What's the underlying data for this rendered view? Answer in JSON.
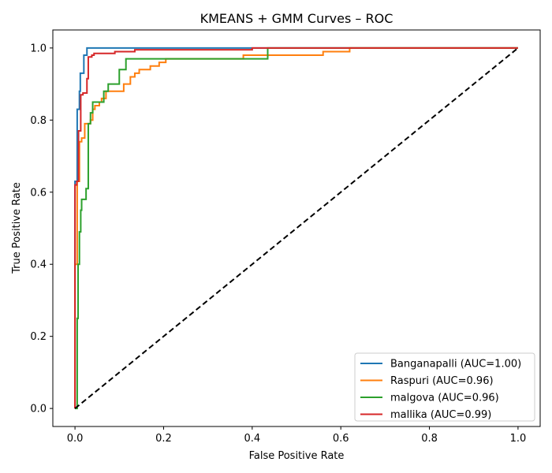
{
  "chart_data": {
    "type": "line",
    "title": "KMEANS + GMM Curves – ROC",
    "xlabel": "False Positive Rate",
    "ylabel": "True Positive Rate",
    "xlim": [
      -0.05,
      1.05
    ],
    "ylim": [
      -0.05,
      1.05
    ],
    "xticks": [
      "0.0",
      "0.2",
      "0.4",
      "0.6",
      "0.8",
      "1.0"
    ],
    "yticks": [
      "0.0",
      "0.2",
      "0.4",
      "0.6",
      "0.8",
      "1.0"
    ],
    "grid": false,
    "legend_position": "lower-right",
    "series": [
      {
        "name": "Banganapalli (AUC=1.00)",
        "color": "#1f77b4",
        "points": [
          [
            0,
            0
          ],
          [
            0,
            0.63
          ],
          [
            0.005,
            0.63
          ],
          [
            0.005,
            0.83
          ],
          [
            0.01,
            0.83
          ],
          [
            0.01,
            0.88
          ],
          [
            0.012,
            0.88
          ],
          [
            0.012,
            0.93
          ],
          [
            0.02,
            0.93
          ],
          [
            0.02,
            0.98
          ],
          [
            0.027,
            0.98
          ],
          [
            0.027,
            1.0
          ],
          [
            1.0,
            1.0
          ]
        ]
      },
      {
        "name": "Raspuri (AUC=0.96)",
        "color": "#ff7f0e",
        "points": [
          [
            0,
            0
          ],
          [
            0,
            0.4
          ],
          [
            0.005,
            0.4
          ],
          [
            0.005,
            0.63
          ],
          [
            0.01,
            0.63
          ],
          [
            0.01,
            0.74
          ],
          [
            0.015,
            0.74
          ],
          [
            0.015,
            0.75
          ],
          [
            0.022,
            0.75
          ],
          [
            0.022,
            0.79
          ],
          [
            0.035,
            0.79
          ],
          [
            0.035,
            0.8
          ],
          [
            0.04,
            0.8
          ],
          [
            0.04,
            0.83
          ],
          [
            0.045,
            0.83
          ],
          [
            0.045,
            0.84
          ],
          [
            0.055,
            0.84
          ],
          [
            0.055,
            0.85
          ],
          [
            0.06,
            0.85
          ],
          [
            0.06,
            0.86
          ],
          [
            0.07,
            0.86
          ],
          [
            0.07,
            0.88
          ],
          [
            0.11,
            0.88
          ],
          [
            0.11,
            0.9
          ],
          [
            0.125,
            0.9
          ],
          [
            0.125,
            0.92
          ],
          [
            0.135,
            0.92
          ],
          [
            0.135,
            0.93
          ],
          [
            0.145,
            0.93
          ],
          [
            0.145,
            0.94
          ],
          [
            0.17,
            0.94
          ],
          [
            0.17,
            0.95
          ],
          [
            0.19,
            0.95
          ],
          [
            0.19,
            0.96
          ],
          [
            0.205,
            0.96
          ],
          [
            0.205,
            0.97
          ],
          [
            0.38,
            0.97
          ],
          [
            0.38,
            0.98
          ],
          [
            0.56,
            0.98
          ],
          [
            0.56,
            0.99
          ],
          [
            0.62,
            0.99
          ],
          [
            0.62,
            1.0
          ],
          [
            1.0,
            1.0
          ]
        ]
      },
      {
        "name": "malgova (AUC=0.96)",
        "color": "#2ca02c",
        "points": [
          [
            0,
            0
          ],
          [
            0.005,
            0
          ],
          [
            0.005,
            0.25
          ],
          [
            0.007,
            0.25
          ],
          [
            0.007,
            0.4
          ],
          [
            0.01,
            0.4
          ],
          [
            0.01,
            0.49
          ],
          [
            0.013,
            0.49
          ],
          [
            0.013,
            0.55
          ],
          [
            0.015,
            0.55
          ],
          [
            0.015,
            0.58
          ],
          [
            0.025,
            0.58
          ],
          [
            0.025,
            0.61
          ],
          [
            0.03,
            0.61
          ],
          [
            0.03,
            0.79
          ],
          [
            0.035,
            0.79
          ],
          [
            0.035,
            0.82
          ],
          [
            0.04,
            0.82
          ],
          [
            0.04,
            0.85
          ],
          [
            0.065,
            0.85
          ],
          [
            0.065,
            0.88
          ],
          [
            0.075,
            0.88
          ],
          [
            0.075,
            0.9
          ],
          [
            0.1,
            0.9
          ],
          [
            0.1,
            0.94
          ],
          [
            0.115,
            0.94
          ],
          [
            0.115,
            0.97
          ],
          [
            0.435,
            0.97
          ],
          [
            0.435,
            1.0
          ],
          [
            1.0,
            1.0
          ]
        ]
      },
      {
        "name": "mallika (AUC=0.99)",
        "color": "#d62728",
        "points": [
          [
            0,
            0
          ],
          [
            0,
            0.62
          ],
          [
            0.004,
            0.62
          ],
          [
            0.004,
            0.63
          ],
          [
            0.008,
            0.63
          ],
          [
            0.008,
            0.77
          ],
          [
            0.013,
            0.77
          ],
          [
            0.013,
            0.87
          ],
          [
            0.018,
            0.87
          ],
          [
            0.018,
            0.875
          ],
          [
            0.027,
            0.875
          ],
          [
            0.027,
            0.915
          ],
          [
            0.03,
            0.915
          ],
          [
            0.03,
            0.975
          ],
          [
            0.038,
            0.975
          ],
          [
            0.038,
            0.98
          ],
          [
            0.043,
            0.98
          ],
          [
            0.043,
            0.985
          ],
          [
            0.09,
            0.985
          ],
          [
            0.09,
            0.99
          ],
          [
            0.135,
            0.99
          ],
          [
            0.135,
            0.995
          ],
          [
            0.4,
            0.995
          ],
          [
            0.4,
            1.0
          ],
          [
            1.0,
            1.0
          ]
        ]
      },
      {
        "name": "",
        "color": "#000000",
        "dashed": true,
        "points": [
          [
            0,
            0
          ],
          [
            1,
            1
          ]
        ]
      }
    ]
  }
}
